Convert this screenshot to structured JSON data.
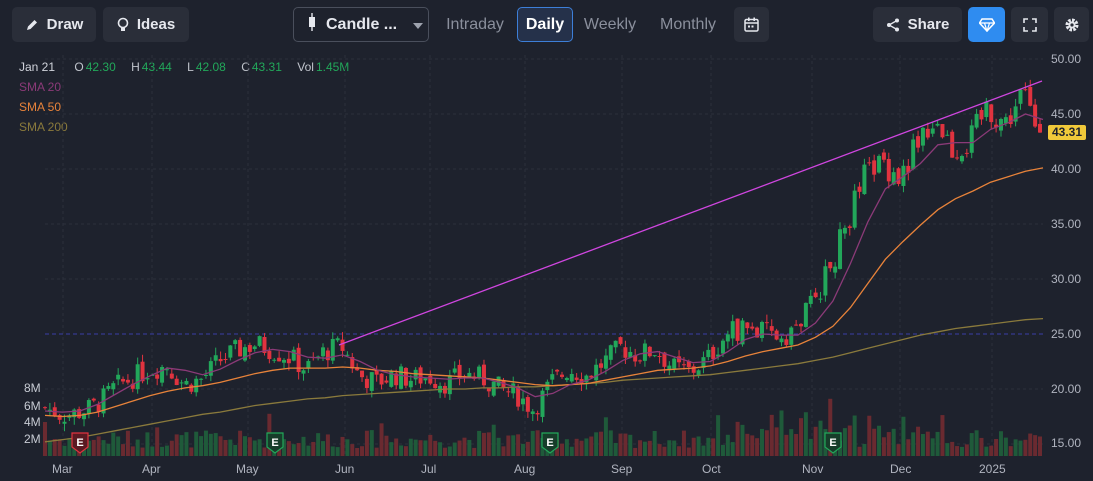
{
  "toolbar": {
    "draw_label": "Draw",
    "ideas_label": "Ideas",
    "chart_type_label": "Candle ...",
    "timeframes": [
      "Intraday",
      "Daily",
      "Weekly",
      "Monthly"
    ],
    "active_timeframe": "Daily",
    "share_label": "Share"
  },
  "legend": {
    "date": "Jan 21",
    "open_label": "O",
    "open": "42.30",
    "high_label": "H",
    "high": "43.44",
    "low_label": "L",
    "low": "42.08",
    "close_label": "C",
    "close": "43.31",
    "vol_label": "Vol",
    "vol": "1.45M"
  },
  "indicators": [
    {
      "label": "SMA 20",
      "color": "#8b3a78"
    },
    {
      "label": "SMA 50",
      "color": "#e8833a"
    },
    {
      "label": "SMA 200",
      "color": "#8a7a3c"
    }
  ],
  "price_tag": "43.31",
  "colors": {
    "up": "#22a75a",
    "down": "#e0333f",
    "trendline": "#d046e0",
    "accent": "#2f8cf0",
    "price_tag": "#f0c93a",
    "background": "#1e222d"
  },
  "chart_data": {
    "type": "candlestick",
    "y_ticks": [
      "50.00",
      "45.00",
      "40.00",
      "35.00",
      "30.00",
      "25.00",
      "20.00",
      "15.00"
    ],
    "ylim": [
      14,
      50
    ],
    "volume_ticks": [
      "8M",
      "6M",
      "4M",
      "2M"
    ],
    "x_ticks": [
      "Mar",
      "Apr",
      "May",
      "Jun",
      "Jul",
      "Aug",
      "Sep",
      "Oct",
      "Nov",
      "Dec",
      "2025"
    ],
    "earnings_markers": [
      "Mar",
      "May",
      "Aug",
      "Nov"
    ],
    "earnings_label": "E",
    "horizontal_level": 25.0,
    "trendline": {
      "from": [
        "Jun",
        24.0
      ],
      "to": [
        "2025",
        48.0
      ]
    },
    "close_path": [
      18.3,
      17.6,
      17.9,
      18.6,
      20.2,
      21.0,
      21.8,
      22.1,
      20.4,
      20.9,
      22.6,
      23.5,
      24.1,
      23.6,
      22.9,
      21.8,
      23.4,
      23.9,
      21.2,
      20.6,
      21.3,
      20.9,
      21.1,
      20.5,
      21.4,
      21.0,
      20.1,
      19.5,
      18.1,
      20.6,
      21.8,
      21.2,
      22.4,
      23.8,
      23.1,
      23.6,
      21.9,
      21.6,
      22.8,
      24.9,
      25.7,
      25.1,
      24.8,
      25.4,
      28.1,
      31.0,
      35.4,
      39.5,
      40.8,
      39.2,
      42.6,
      44.9,
      41.9,
      42.4,
      45.8,
      44.1,
      46.9,
      43.31
    ],
    "sma20": [
      18.0,
      17.9,
      18.0,
      18.6,
      19.5,
      20.4,
      21.2,
      21.9,
      21.7,
      21.3,
      21.8,
      22.6,
      23.3,
      23.6,
      23.4,
      22.9,
      22.8,
      23.1,
      22.5,
      21.7,
      21.3,
      21.1,
      21.0,
      20.9,
      21.0,
      21.0,
      20.6,
      20.1,
      19.3,
      19.6,
      20.4,
      20.8,
      21.6,
      22.6,
      23.2,
      23.4,
      22.9,
      22.4,
      22.5,
      23.4,
      24.5,
      25.0,
      24.9,
      24.9,
      26.0,
      28.0,
      31.4,
      35.2,
      38.2,
      39.3,
      40.5,
      42.2,
      42.4,
      42.4,
      43.6,
      44.2,
      45.0,
      44.5
    ],
    "sma50": [
      17.6,
      17.5,
      17.6,
      17.9,
      18.4,
      18.9,
      19.4,
      19.8,
      20.1,
      20.3,
      20.6,
      21.0,
      21.4,
      21.7,
      21.9,
      21.9,
      21.9,
      22.0,
      21.9,
      21.7,
      21.6,
      21.4,
      21.3,
      21.2,
      21.1,
      21.0,
      20.8,
      20.6,
      20.4,
      20.3,
      20.4,
      20.5,
      20.8,
      21.1,
      21.4,
      21.7,
      21.8,
      21.9,
      22.1,
      22.5,
      23.0,
      23.4,
      23.7,
      24.0,
      24.7,
      25.7,
      27.4,
      29.6,
      31.8,
      33.4,
      34.9,
      36.3,
      37.3,
      38.0,
      38.8,
      39.3,
      39.8,
      40.1
    ],
    "sma200": [
      15.2,
      15.4,
      15.6,
      15.9,
      16.2,
      16.5,
      16.8,
      17.1,
      17.4,
      17.7,
      17.9,
      18.2,
      18.5,
      18.7,
      18.9,
      19.1,
      19.2,
      19.4,
      19.5,
      19.6,
      19.7,
      19.8,
      19.9,
      20.0,
      20.0,
      20.1,
      20.1,
      20.2,
      20.2,
      20.3,
      20.4,
      20.5,
      20.6,
      20.8,
      20.9,
      21.0,
      21.1,
      21.2,
      21.3,
      21.5,
      21.7,
      21.9,
      22.1,
      22.3,
      22.6,
      22.9,
      23.3,
      23.7,
      24.1,
      24.5,
      24.9,
      25.2,
      25.5,
      25.7,
      25.9,
      26.1,
      26.3,
      26.4
    ]
  }
}
